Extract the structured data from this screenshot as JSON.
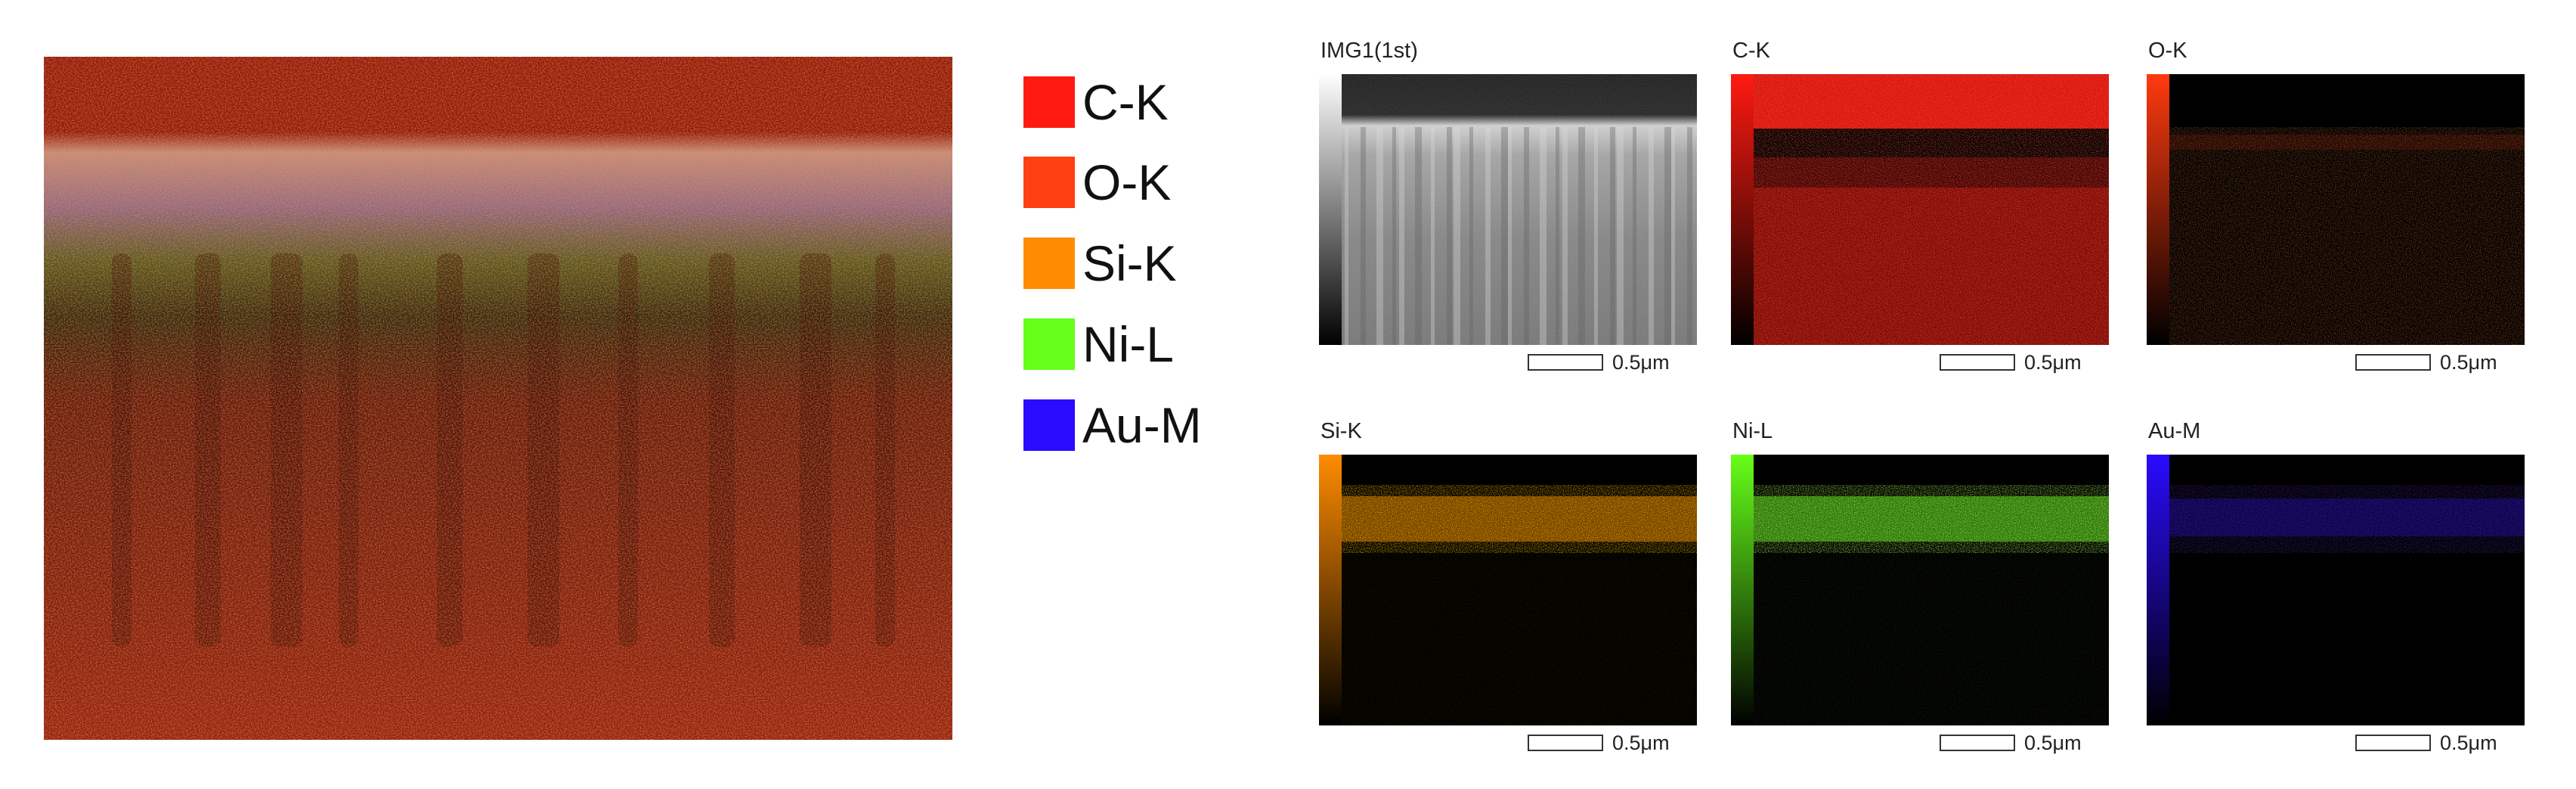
{
  "legend": [
    {
      "label": "C-K",
      "color": "#ff1a10"
    },
    {
      "label": "O-K",
      "color": "#ff4010"
    },
    {
      "label": "Si-K",
      "color": "#ff8c00"
    },
    {
      "label": "Ni-L",
      "color": "#66ff19"
    },
    {
      "label": "Au-M",
      "color": "#2a0bff"
    }
  ],
  "panels": [
    {
      "title": "IMG1(1st)",
      "scale": "0.5μm",
      "color": "#ffffff"
    },
    {
      "title": "C-K",
      "scale": "0.5μm",
      "color": "#ff1a10"
    },
    {
      "title": "O-K",
      "scale": "0.5μm",
      "color": "#ff3a10"
    },
    {
      "title": "Si-K",
      "scale": "0.5μm",
      "color": "#ff8c00"
    },
    {
      "title": "Ni-L",
      "scale": "0.5μm",
      "color": "#66ff19"
    },
    {
      "title": "Au-M",
      "scale": "0.5μm",
      "color": "#2a0bff"
    }
  ]
}
